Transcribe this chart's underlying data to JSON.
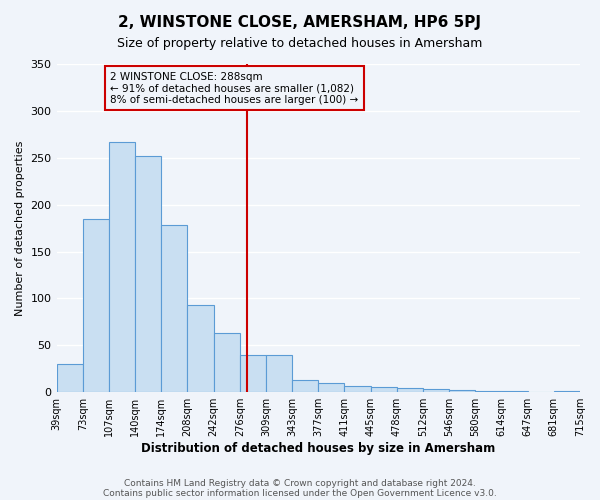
{
  "title": "2, WINSTONE CLOSE, AMERSHAM, HP6 5PJ",
  "subtitle": "Size of property relative to detached houses in Amersham",
  "xlabel": "Distribution of detached houses by size in Amersham",
  "ylabel": "Number of detached properties",
  "bin_labels": [
    "39sqm",
    "73sqm",
    "107sqm",
    "140sqm",
    "174sqm",
    "208sqm",
    "242sqm",
    "276sqm",
    "309sqm",
    "343sqm",
    "377sqm",
    "411sqm",
    "445sqm",
    "478sqm",
    "512sqm",
    "546sqm",
    "580sqm",
    "614sqm",
    "647sqm",
    "681sqm",
    "715sqm"
  ],
  "bar_heights": [
    30,
    185,
    267,
    252,
    178,
    93,
    63,
    40,
    40,
    13,
    10,
    7,
    6,
    5,
    3,
    2,
    1,
    1,
    0,
    1
  ],
  "bar_color": "#c9dff2",
  "bar_edge_color": "#5b9bd5",
  "vline_x": 7.27,
  "vline_color": "#cc0000",
  "annotation_title": "2 WINSTONE CLOSE: 288sqm",
  "annotation_line1": "← 91% of detached houses are smaller (1,082)",
  "annotation_line2": "8% of semi-detached houses are larger (100) →",
  "annotation_box_color": "#cc0000",
  "ylim": [
    0,
    350
  ],
  "yticks": [
    0,
    50,
    100,
    150,
    200,
    250,
    300,
    350
  ],
  "footer1": "Contains HM Land Registry data © Crown copyright and database right 2024.",
  "footer2": "Contains public sector information licensed under the Open Government Licence v3.0.",
  "background_color": "#f0f4fa",
  "grid_color": "#ffffff"
}
